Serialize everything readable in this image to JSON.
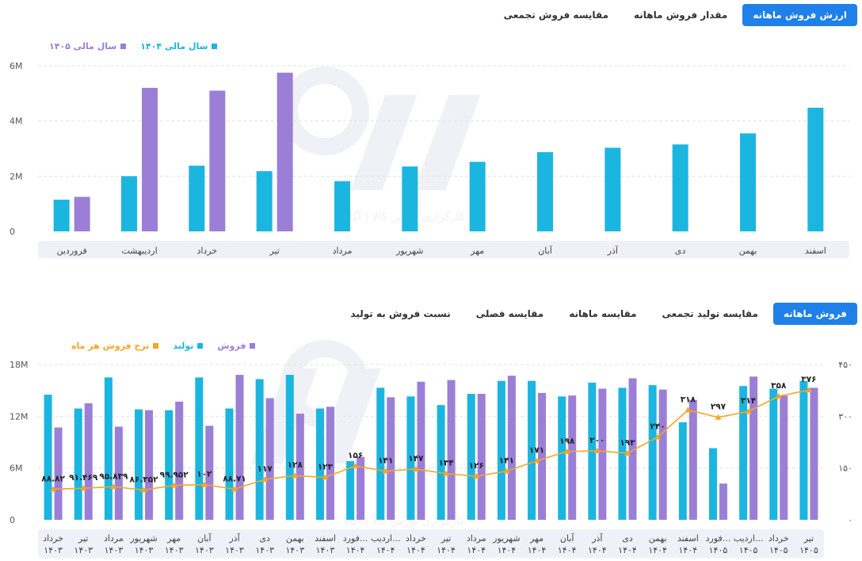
{
  "top_tabs": [
    {
      "label": "ارزش فروش ماهانه",
      "active": true
    },
    {
      "label": "مقدار فروش ماهانه",
      "active": false
    },
    {
      "label": "مقایسه فروش تجمعی",
      "active": false
    }
  ],
  "bottom_tabs": [
    {
      "label": "فروش ماهانه",
      "active": true
    },
    {
      "label": "مقایسه تولید تجمعی",
      "active": false
    },
    {
      "label": "مقایسه ماهانه",
      "active": false
    },
    {
      "label": "مقایسه فصلی",
      "active": false
    },
    {
      "label": "نسبت فروش به تولید",
      "active": false
    }
  ],
  "watermark": {
    "caption": "کارگزاری بورس کالا | آگاه"
  },
  "colors": {
    "blue": "#1bb6e0",
    "purple": "#9b7fd6",
    "orange": "#f5a623",
    "active_tab": "#1e80e8"
  },
  "chart_data": [
    {
      "type": "bar",
      "title": "",
      "categories": [
        "فروردین",
        "اردیبهشت",
        "خرداد",
        "تیر",
        "مرداد",
        "شهریور",
        "مهر",
        "آبان",
        "آذر",
        "دی",
        "بهمن",
        "اسفند"
      ],
      "series": [
        {
          "name": "سال مالی ۱۴۰۴",
          "color": "#1bb6e0",
          "values": [
            1.15,
            2.0,
            2.38,
            2.18,
            1.82,
            2.35,
            2.52,
            2.87,
            3.03,
            3.15,
            3.55,
            4.48
          ]
        },
        {
          "name": "سال مالی ۱۴۰۵",
          "color": "#9b7fd6",
          "values": [
            1.25,
            5.2,
            5.1,
            5.75,
            null,
            null,
            null,
            null,
            null,
            null,
            null,
            null
          ]
        }
      ],
      "yticks": [
        "0",
        "2M",
        "4M",
        "6M"
      ],
      "ylim": [
        0,
        6
      ],
      "grid": true,
      "legend_position": "top-left"
    },
    {
      "type": "bar",
      "title": "",
      "categories": [
        {
          "month": "خرداد",
          "year": "۱۴۰۳"
        },
        {
          "month": "تیر",
          "year": "۱۴۰۳"
        },
        {
          "month": "مرداد",
          "year": "۱۴۰۳"
        },
        {
          "month": "شهریور",
          "year": "۱۴۰۳"
        },
        {
          "month": "مهر",
          "year": "۱۴۰۳"
        },
        {
          "month": "آبان",
          "year": "۱۴۰۳"
        },
        {
          "month": "آذر",
          "year": "۱۴۰۳"
        },
        {
          "month": "دی",
          "year": "۱۴۰۳"
        },
        {
          "month": "بهمن",
          "year": "۱۴۰۳"
        },
        {
          "month": "اسفند",
          "year": "۱۴۰۳"
        },
        {
          "month": "فورد...",
          "year": "۱۴۰۴"
        },
        {
          "month": "اردیب...",
          "year": "۱۴۰۴"
        },
        {
          "month": "خرداد",
          "year": "۱۴۰۴"
        },
        {
          "month": "تیر",
          "year": "۱۴۰۴"
        },
        {
          "month": "مرداد",
          "year": "۱۴۰۴"
        },
        {
          "month": "شهریور",
          "year": "۱۴۰۴"
        },
        {
          "month": "مهر",
          "year": "۱۴۰۴"
        },
        {
          "month": "آبان",
          "year": "۱۴۰۴"
        },
        {
          "month": "آذر",
          "year": "۱۴۰۴"
        },
        {
          "month": "دی",
          "year": "۱۴۰۴"
        },
        {
          "month": "بهمن",
          "year": "۱۴۰۴"
        },
        {
          "month": "اسفند",
          "year": "۱۴۰۴"
        },
        {
          "month": "فورد...",
          "year": "۱۴۰۵"
        },
        {
          "month": "اردیب...",
          "year": "۱۴۰۵"
        },
        {
          "month": "خرداد",
          "year": "۱۴۰۵"
        },
        {
          "month": "تیر",
          "year": "۱۴۰۵"
        }
      ],
      "series": [
        {
          "name": "فروش",
          "color": "#9b7fd6",
          "axis": "left",
          "kind": "bar",
          "values": [
            10.7,
            13.5,
            10.8,
            12.7,
            13.7,
            10.9,
            16.8,
            14.1,
            12.3,
            13.1,
            7.3,
            14.2,
            16.0,
            16.2,
            14.6,
            16.7,
            14.7,
            14.4,
            15.2,
            16.4,
            15.1,
            13.9,
            4.2,
            16.6,
            14.4,
            15.3
          ]
        },
        {
          "name": "تولید",
          "color": "#1bb6e0",
          "axis": "left",
          "kind": "bar",
          "values": [
            14.5,
            12.9,
            16.5,
            12.8,
            12.7,
            16.5,
            12.9,
            16.3,
            16.8,
            12.9,
            6.8,
            15.3,
            14.3,
            13.3,
            14.6,
            16.1,
            16.1,
            14.3,
            15.9,
            15.3,
            15.6,
            11.3,
            8.3,
            15.5,
            15.2,
            16.1
          ]
        },
        {
          "name": "نرخ فروش هر ماه",
          "color": "#f5a623",
          "axis": "right",
          "kind": "line",
          "values": [
            88.82,
            91.469,
            95.839,
            86.352,
            99.952,
            102,
            88.71,
            117,
            128,
            123,
            156,
            141,
            147,
            134,
            126,
            141,
            171,
            198,
            200,
            193,
            240,
            318,
            297,
            314,
            358,
            376
          ],
          "labels": [
            "۸۸.۸۲",
            "۹۱.۴۶۹",
            "۹۵.۸۳۹",
            "۸۶.۳۵۲",
            "۹۹.۹۵۲",
            "۱۰۲",
            "۸۸.۷۱",
            "۱۱۷",
            "۱۲۸",
            "۱۲۳",
            "۱۵۶",
            "۱۴۱",
            "۱۴۷",
            "۱۳۴",
            "۱۲۶",
            "۱۴۱",
            "۱۷۱",
            "۱۹۸",
            "۲۰۰",
            "۱۹۳",
            "۲۴۰",
            "۳۱۸",
            "۲۹۷",
            "۳۱۴",
            "۳۵۸",
            "۳۷۶"
          ]
        }
      ],
      "yticks_left": [
        "0",
        "6M",
        "12M",
        "18M"
      ],
      "ylim_left": [
        0,
        18
      ],
      "yticks_right": [
        "۰",
        "۱۵۰",
        "۳۰۰",
        "۴۵۰"
      ],
      "ylim_right": [
        0,
        450
      ],
      "grid": true,
      "legend_position": "top-left"
    }
  ]
}
